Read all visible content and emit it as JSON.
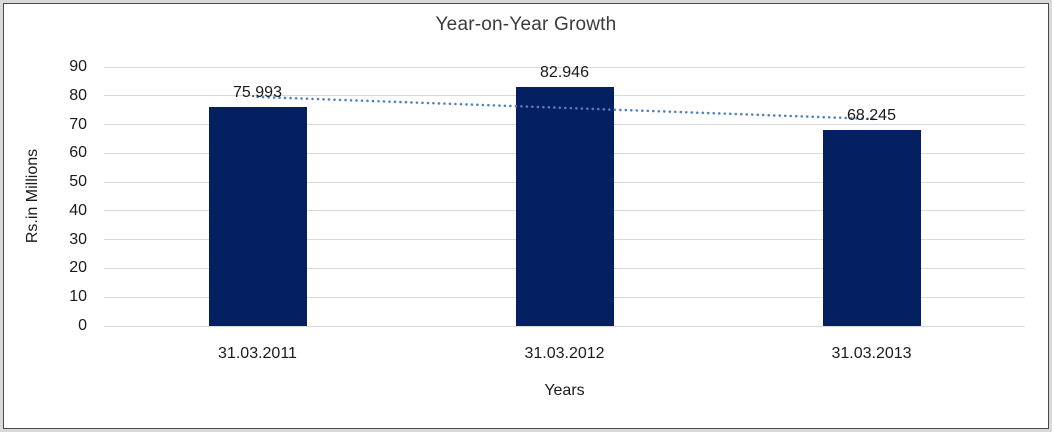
{
  "chart_data": {
    "type": "bar",
    "title": "Year-on-Year Growth",
    "categories": [
      "31.03.2011",
      "31.03.2012",
      "31.03.2013"
    ],
    "values": [
      75.993,
      82.946,
      68.245
    ],
    "data_labels": [
      "75.993",
      "82.946",
      "68.245"
    ],
    "xlabel": "Years",
    "ylabel": "Rs.in Millions",
    "ylim": [
      0,
      90
    ],
    "yticks": [
      0,
      10,
      20,
      30,
      40,
      50,
      60,
      70,
      80,
      90
    ],
    "grid": true,
    "legend": "none",
    "bar_color": "#052060",
    "gridline_color": "#d9d9d9",
    "trendline": {
      "type": "linear",
      "style": "dotted",
      "color": "#4f81bd",
      "start_value": 79.6,
      "end_value": 71.9
    }
  }
}
